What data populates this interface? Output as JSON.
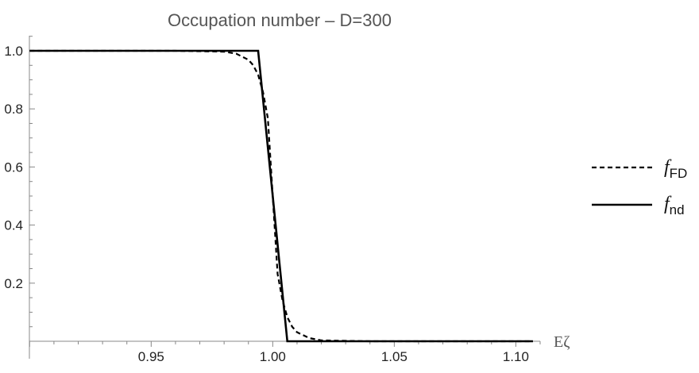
{
  "chart_data": {
    "type": "line",
    "title": "Occupation number – D=300",
    "xlabel": "Eζ",
    "ylabel": "",
    "xlim": [
      0.9,
      1.11
    ],
    "ylim": [
      0,
      1.06
    ],
    "x_ticks": [
      0.95,
      1.0,
      1.05,
      1.1
    ],
    "x_tick_labels": [
      "0.95",
      "1.00",
      "1.05",
      "1.10"
    ],
    "y_ticks": [
      0.2,
      0.4,
      0.6,
      0.8,
      1.0
    ],
    "y_tick_labels": [
      "0.2",
      "0.4",
      "0.6",
      "0.8",
      "1.0"
    ],
    "legend_position": "right",
    "series": [
      {
        "name": "fFD",
        "legend_main": "f",
        "legend_sub": "FD",
        "style": "dashed",
        "x": [
          0.9,
          0.96,
          0.98,
          0.985,
          0.99,
          0.992,
          0.994,
          0.996,
          0.998,
          1.0,
          1.002,
          1.004,
          1.006,
          1.008,
          1.01,
          1.015,
          1.02,
          1.04,
          1.107
        ],
        "y": [
          1.0,
          1.0,
          0.997,
          0.99,
          0.969,
          0.95,
          0.917,
          0.858,
          0.768,
          0.5,
          0.232,
          0.142,
          0.083,
          0.05,
          0.031,
          0.011,
          0.003,
          0.0,
          0.0
        ]
      },
      {
        "name": "fnd",
        "legend_main": "f",
        "legend_sub": "nd",
        "style": "solid",
        "x": [
          0.9,
          0.994,
          1.006,
          1.107
        ],
        "y": [
          1.0,
          1.0,
          0.0,
          0.0
        ]
      }
    ],
    "colors": {
      "line": "#000000",
      "axis": "#888888",
      "title": "#555555"
    }
  }
}
